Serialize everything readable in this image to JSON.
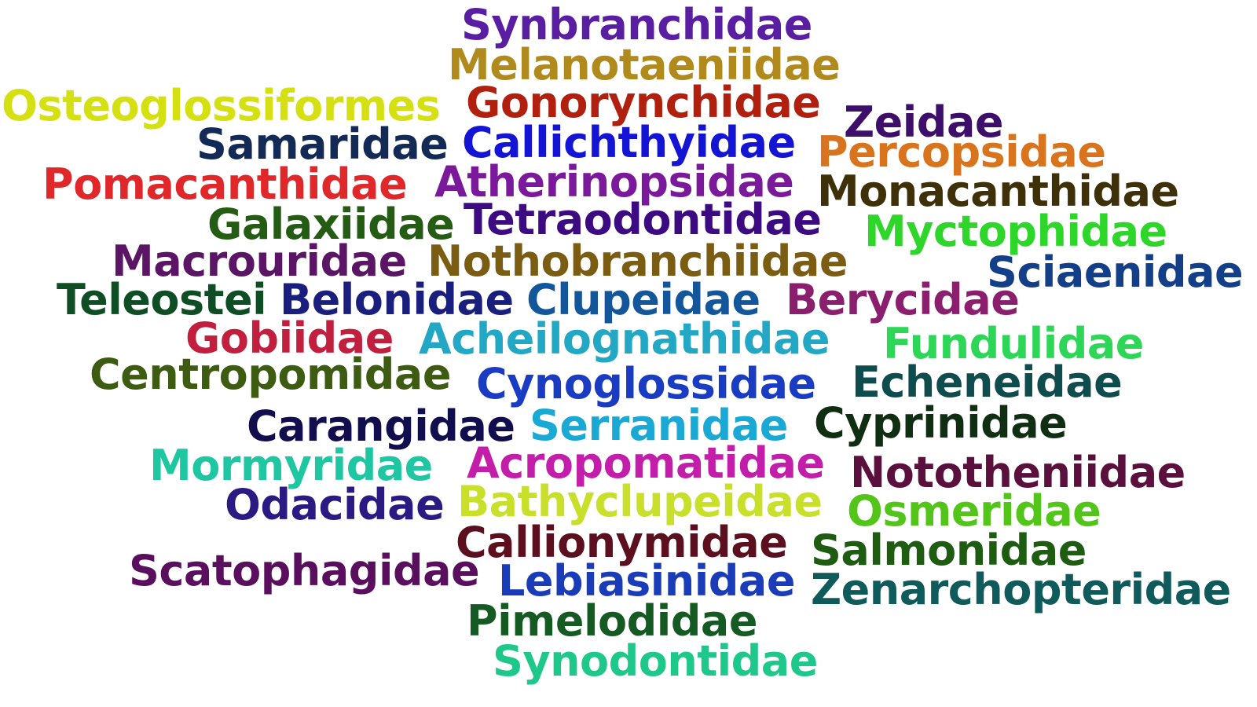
{
  "cloud": {
    "words": [
      {
        "text": "Synbranchidae",
        "color": "#5a1ea3"
      },
      {
        "text": "Melanotaeniidae",
        "color": "#b08a1c"
      },
      {
        "text": "Osteoglossiformes",
        "color": "#d4e012"
      },
      {
        "text": "Gonorynchidae",
        "color": "#b1200f"
      },
      {
        "text": "Zeidae",
        "color": "#3d0f6b"
      },
      {
        "text": "Samaridae",
        "color": "#122a55"
      },
      {
        "text": "Callichthyidae",
        "color": "#1414d4"
      },
      {
        "text": "Percopsidae",
        "color": "#d8741e"
      },
      {
        "text": "Pomacanthidae",
        "color": "#e0282a"
      },
      {
        "text": "Atherinopsidae",
        "color": "#7a1a9a"
      },
      {
        "text": "Monacanthidae",
        "color": "#3e3008"
      },
      {
        "text": "Galaxiidae",
        "color": "#235c12"
      },
      {
        "text": "Tetraodontidae",
        "color": "#3c0b82"
      },
      {
        "text": "Myctophidae",
        "color": "#2ed62a"
      },
      {
        "text": "Macrouridae",
        "color": "#5a1565"
      },
      {
        "text": "Nothobranchiidae",
        "color": "#7a5c12"
      },
      {
        "text": "Sciaenidae",
        "color": "#123f88"
      },
      {
        "text": "Teleostei",
        "color": "#0f4d25"
      },
      {
        "text": "Belonidae",
        "color": "#1a1f7e"
      },
      {
        "text": "Clupeidae",
        "color": "#14569a"
      },
      {
        "text": "Berycidae",
        "color": "#8a1f6e"
      },
      {
        "text": "Gobiidae",
        "color": "#c21e3e"
      },
      {
        "text": "Acheilognathidae",
        "color": "#22a8c4"
      },
      {
        "text": "Fundulidae",
        "color": "#2ed658"
      },
      {
        "text": "Centropomidae",
        "color": "#3d5c12"
      },
      {
        "text": "Cynoglossidae",
        "color": "#1a3cc2"
      },
      {
        "text": "Echeneidae",
        "color": "#0f4c4d"
      },
      {
        "text": "Carangidae",
        "color": "#120d4c"
      },
      {
        "text": "Serranidae",
        "color": "#1aa8d4"
      },
      {
        "text": "Cyprinidae",
        "color": "#0f2e12"
      },
      {
        "text": "Mormyridae",
        "color": "#1ec7a2"
      },
      {
        "text": "Acropomatidae",
        "color": "#c21eaa"
      },
      {
        "text": "Nototheniidae",
        "color": "#5a0f3d"
      },
      {
        "text": "Odacidae",
        "color": "#2b1a82"
      },
      {
        "text": "Bathyclupeidae",
        "color": "#c8e02a"
      },
      {
        "text": "Osmeridae",
        "color": "#52c41a"
      },
      {
        "text": "Callionymidae",
        "color": "#5c0f1e"
      },
      {
        "text": "Salmonidae",
        "color": "#1e5c12"
      },
      {
        "text": "Scatophagidae",
        "color": "#5a0f5e"
      },
      {
        "text": "Lebiasinidae",
        "color": "#1a3cb8"
      },
      {
        "text": "Zenarchopteridae",
        "color": "#0f5a5a"
      },
      {
        "text": "Pimelodidae",
        "color": "#145a22"
      },
      {
        "text": "Synodontidae",
        "color": "#1ec78a"
      }
    ]
  }
}
